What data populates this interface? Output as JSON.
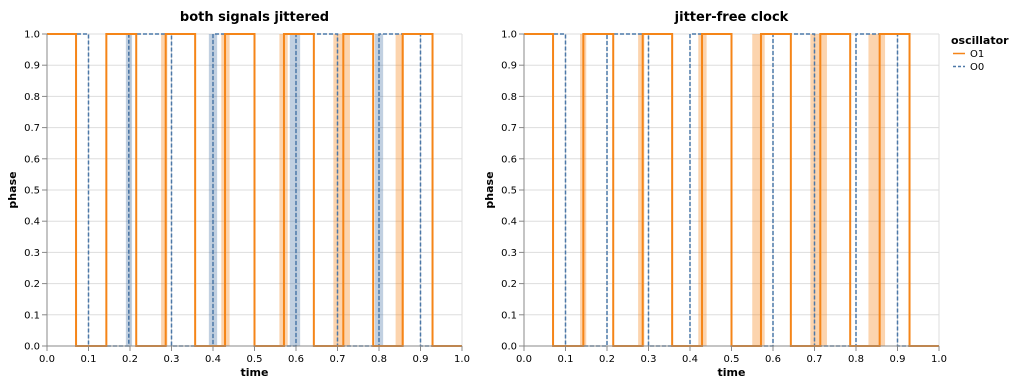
{
  "chart_data": [
    {
      "type": "line",
      "title": "both signals jittered",
      "xlabel": "time",
      "ylabel": "phase",
      "xlim": [
        0,
        1.0
      ],
      "ylim": [
        0,
        1.0
      ],
      "xticks": [
        "0.0",
        "0.1",
        "0.2",
        "0.3",
        "0.4",
        "0.5",
        "0.6",
        "0.7",
        "0.8",
        "0.9",
        "1.0"
      ],
      "yticks": [
        "0.0",
        "0.1",
        "0.2",
        "0.3",
        "0.4",
        "0.5",
        "0.6",
        "0.7",
        "0.8",
        "0.9",
        "1.0"
      ],
      "grid": true,
      "series": [
        {
          "name": "O1",
          "color": "#f58518",
          "dash": "solid",
          "step_x": [
            0,
            0.07,
            0.143,
            0.215,
            0.286,
            0.357,
            0.429,
            0.5,
            0.571,
            0.643,
            0.714,
            0.786,
            0.857,
            0.929,
            1.0
          ],
          "start_level": 1
        },
        {
          "name": "O0",
          "color": "#4c78a8",
          "dash": "dashed",
          "step_x": [
            0,
            0.1,
            0.197,
            0.3,
            0.4,
            0.5,
            0.6,
            0.7,
            0.8,
            0.9,
            1.0
          ],
          "start_level": 1
        }
      ],
      "bands": [
        {
          "series": "O1",
          "color": "#f58518",
          "opacity": 0.35,
          "ranges": [
            [
              0.275,
              0.29
            ],
            [
              0.42,
              0.44
            ],
            [
              0.56,
              0.58
            ],
            [
              0.69,
              0.73
            ],
            [
              0.84,
              0.86
            ]
          ]
        },
        {
          "series": "O0",
          "color": "#4c78a8",
          "opacity": 0.35,
          "ranges": [
            [
              0.19,
              0.205
            ],
            [
              0.39,
              0.41
            ],
            [
              0.585,
              0.61
            ],
            [
              0.79,
              0.81
            ]
          ]
        }
      ]
    },
    {
      "type": "line",
      "title": "jitter-free clock",
      "xlabel": "time",
      "ylabel": "phase",
      "xlim": [
        0,
        1.0
      ],
      "ylim": [
        0,
        1.0
      ],
      "xticks": [
        "0.0",
        "0.1",
        "0.2",
        "0.3",
        "0.4",
        "0.5",
        "0.6",
        "0.7",
        "0.8",
        "0.9",
        "1.0"
      ],
      "yticks": [
        "0.0",
        "0.1",
        "0.2",
        "0.3",
        "0.4",
        "0.5",
        "0.6",
        "0.7",
        "0.8",
        "0.9",
        "1.0"
      ],
      "grid": true,
      "series": [
        {
          "name": "O1",
          "color": "#f58518",
          "dash": "solid",
          "step_x": [
            0,
            0.07,
            0.143,
            0.215,
            0.286,
            0.357,
            0.429,
            0.5,
            0.571,
            0.643,
            0.714,
            0.786,
            0.857,
            0.929,
            1.0
          ],
          "start_level": 1
        },
        {
          "name": "O0",
          "color": "#4c78a8",
          "dash": "dashed",
          "step_x": [
            0,
            0.1,
            0.2,
            0.3,
            0.4,
            0.5,
            0.6,
            0.7,
            0.8,
            0.9,
            1.0
          ],
          "start_level": 1
        }
      ],
      "bands": [
        {
          "series": "O1",
          "color": "#f58518",
          "opacity": 0.35,
          "ranges": [
            [
              0.135,
              0.15
            ],
            [
              0.275,
              0.29
            ],
            [
              0.42,
              0.44
            ],
            [
              0.55,
              0.58
            ],
            [
              0.69,
              0.73
            ],
            [
              0.83,
              0.87
            ]
          ]
        }
      ]
    }
  ],
  "legend": {
    "title": "oscillator",
    "placement": "right",
    "items": [
      {
        "label": "O1",
        "color": "#f58518",
        "dash": "solid"
      },
      {
        "label": "O0",
        "color": "#4c78a8",
        "dash": "dashed"
      }
    ]
  }
}
